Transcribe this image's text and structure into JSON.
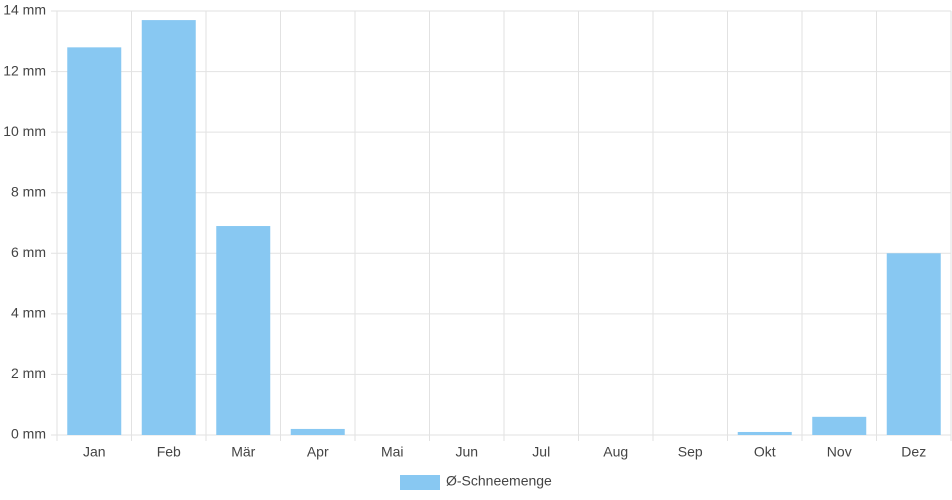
{
  "chart_data": {
    "type": "bar",
    "categories": [
      "Jan",
      "Feb",
      "Mär",
      "Apr",
      "Mai",
      "Jun",
      "Jul",
      "Aug",
      "Sep",
      "Okt",
      "Nov",
      "Dez"
    ],
    "series": [
      {
        "name": "Ø-Schneemenge",
        "color": "#88c8f2",
        "values": [
          12.8,
          13.7,
          6.9,
          0.2,
          0,
          0,
          0,
          0,
          0,
          0.1,
          0.6,
          6.0
        ]
      }
    ],
    "ylim": [
      0,
      14
    ],
    "yticks": [
      {
        "value": 0,
        "label": "0 mm"
      },
      {
        "value": 2,
        "label": "2 mm"
      },
      {
        "value": 4,
        "label": "4 mm"
      },
      {
        "value": 6,
        "label": "6 mm"
      },
      {
        "value": 8,
        "label": "8 mm"
      },
      {
        "value": 10,
        "label": "10 mm"
      },
      {
        "value": 12,
        "label": "12 mm"
      },
      {
        "value": 14,
        "label": "14 mm"
      }
    ],
    "grid": true,
    "legend": "bottom"
  }
}
